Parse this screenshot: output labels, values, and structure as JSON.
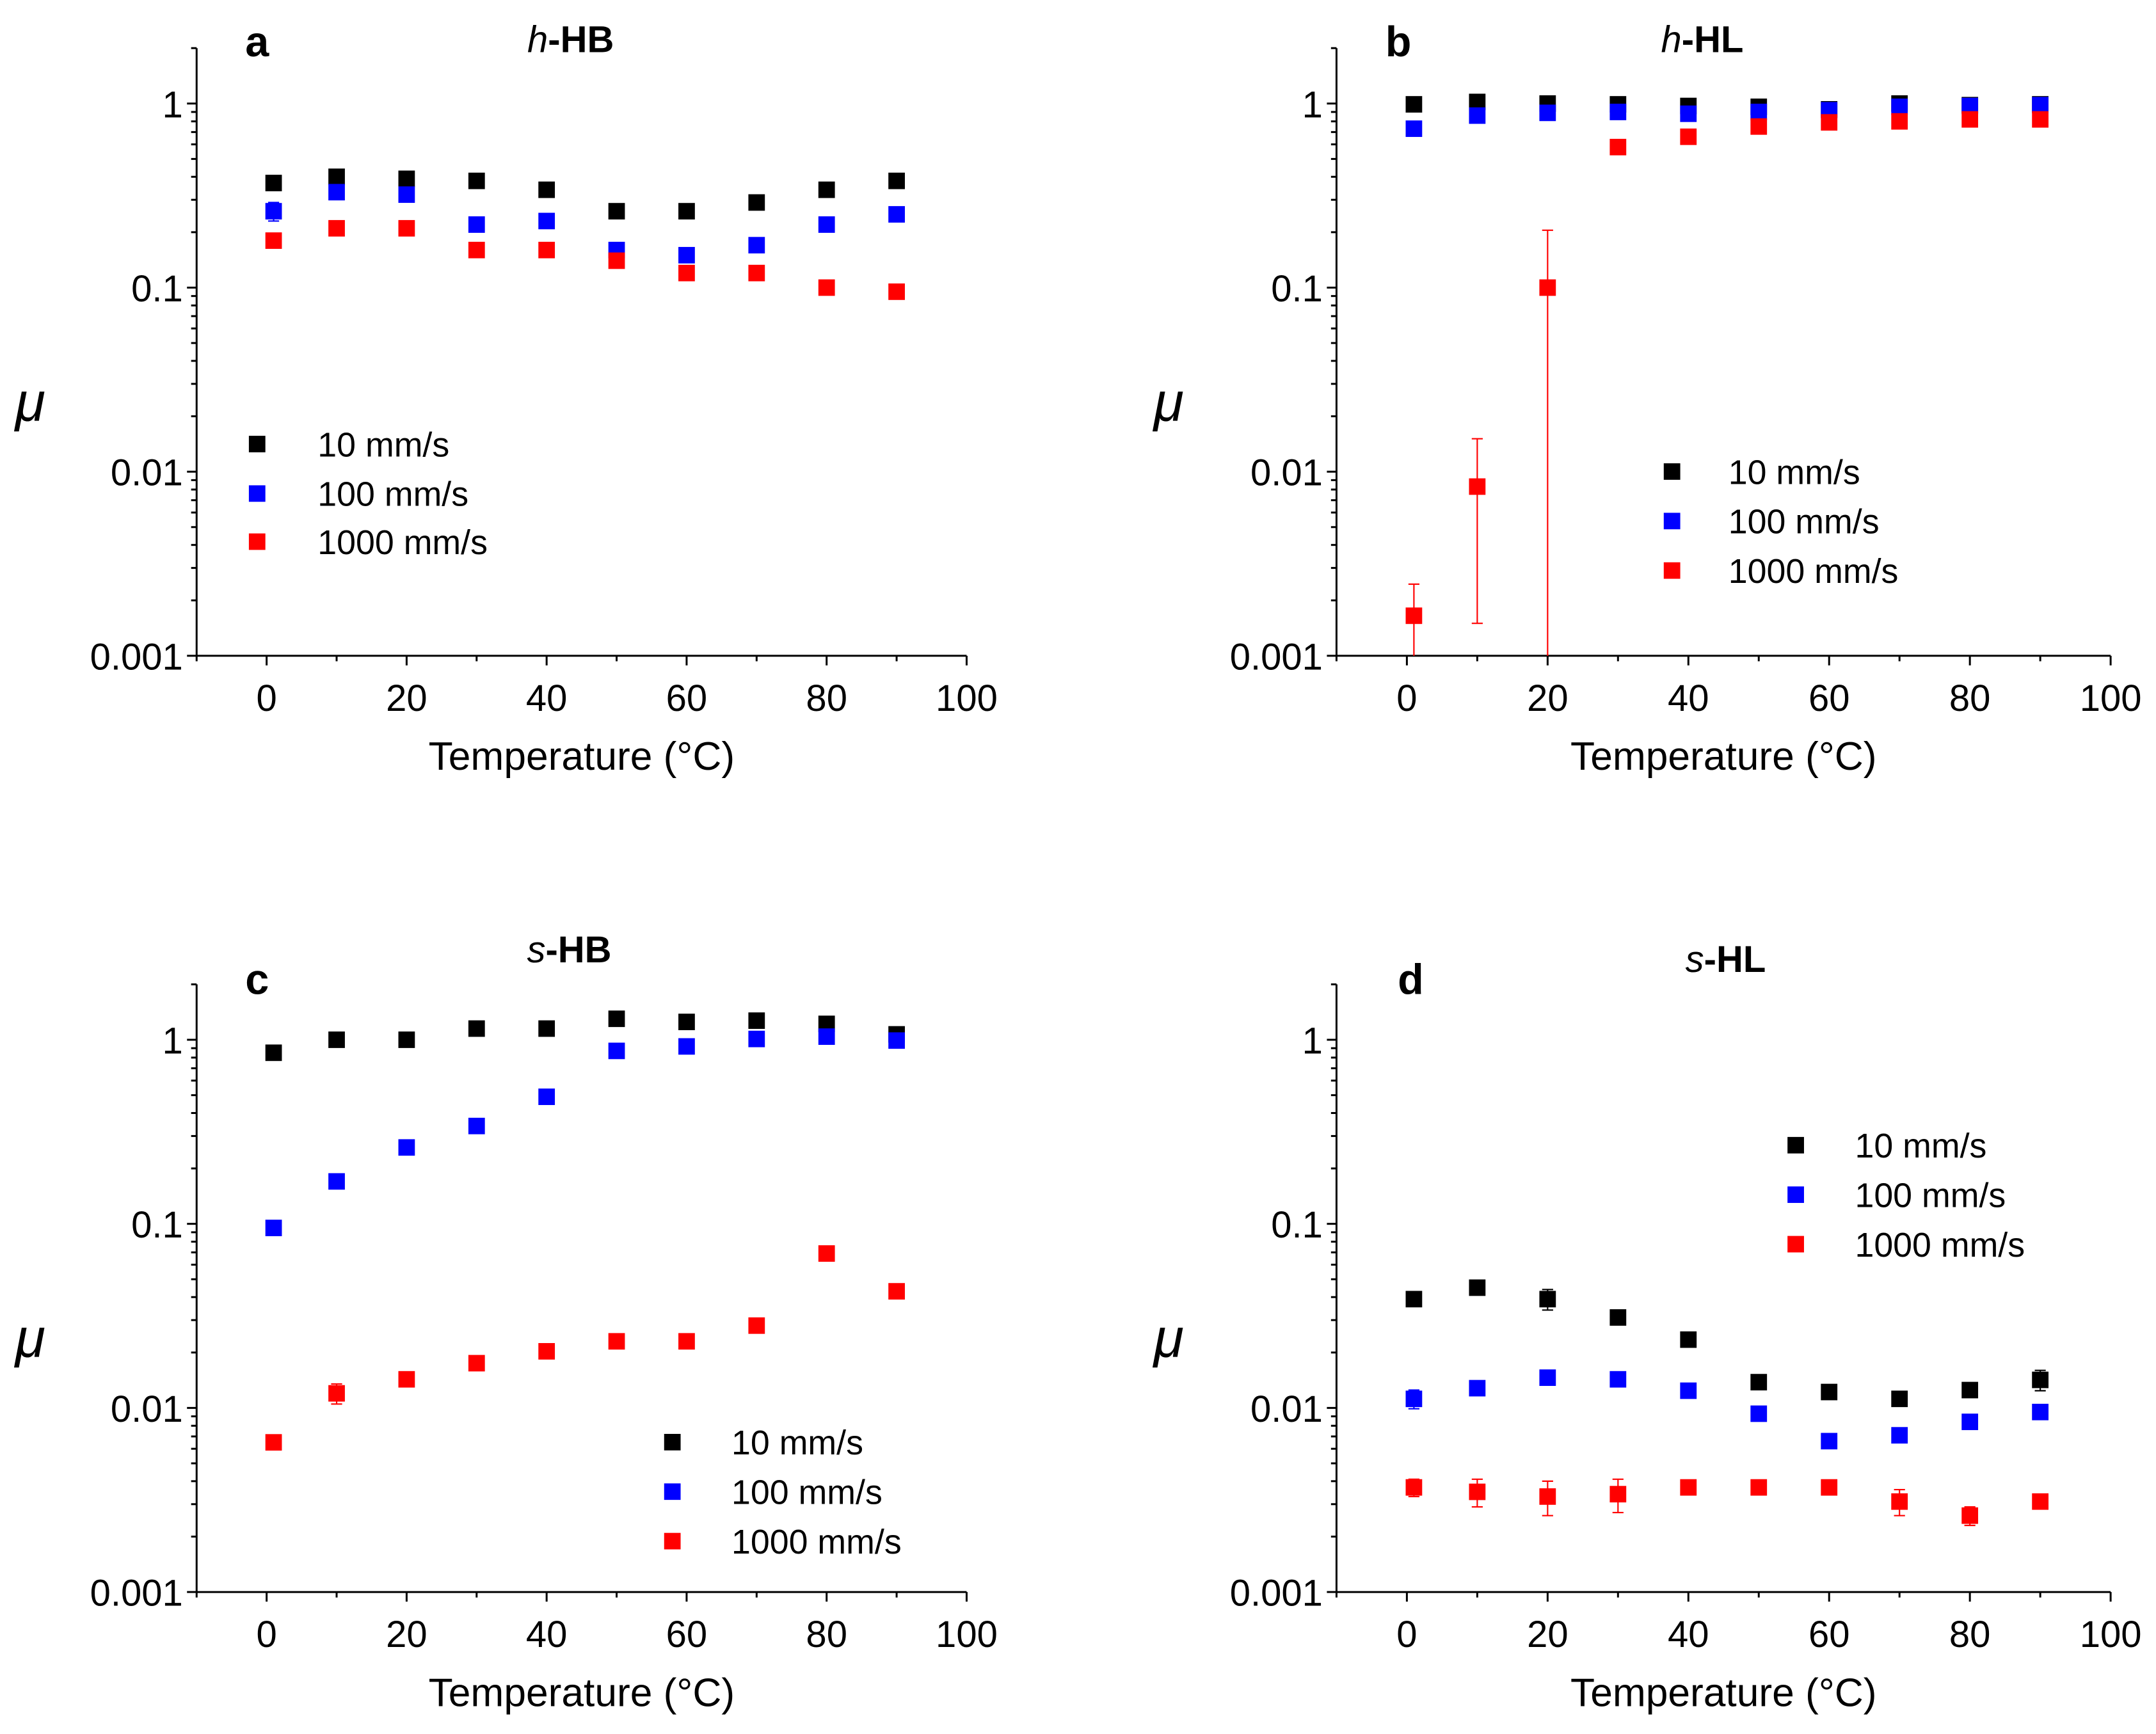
{
  "figure": {
    "panels": [
      "a",
      "b",
      "c",
      "d"
    ]
  },
  "chart_data": [
    {
      "type": "scatter",
      "panel": "a",
      "title_prefix": "h",
      "title_suffix": "-HB",
      "xlabel": "Temperature (°C)",
      "ylabel": "μ",
      "yscale": "log",
      "xlim": [
        -10,
        100
      ],
      "ylim": [
        0.001,
        2
      ],
      "xticks": [
        0,
        20,
        40,
        60,
        80,
        100
      ],
      "yticks": [
        0.001,
        0.01,
        0.1,
        1
      ],
      "ytick_labels": [
        "0.001",
        "0.01",
        "0.1",
        "1"
      ],
      "legend_position": "left-middle",
      "x": [
        1,
        10,
        20,
        30,
        40,
        50,
        60,
        70,
        80,
        90
      ],
      "series": [
        {
          "name": "10 mm/s",
          "color": "#000000",
          "values": [
            0.37,
            0.4,
            0.39,
            0.38,
            0.34,
            0.26,
            0.26,
            0.29,
            0.34,
            0.38
          ],
          "errors": [
            0,
            0,
            0,
            0,
            0,
            0,
            0,
            0,
            0,
            0
          ]
        },
        {
          "name": "100 mm/s",
          "color": "#0000ff",
          "values": [
            0.26,
            0.33,
            0.32,
            0.22,
            0.23,
            0.16,
            0.15,
            0.17,
            0.22,
            0.25
          ],
          "errors": [
            0.03,
            0,
            0,
            0,
            0,
            0,
            0,
            0,
            0,
            0
          ]
        },
        {
          "name": "1000 mm/s",
          "color": "#ff0000",
          "values": [
            0.18,
            0.21,
            0.21,
            0.16,
            0.16,
            0.14,
            0.12,
            0.12,
            0.1,
            0.095
          ],
          "errors": [
            0,
            0,
            0,
            0,
            0,
            0,
            0,
            0,
            0,
            0
          ]
        }
      ]
    },
    {
      "type": "scatter",
      "panel": "b",
      "title_prefix": "h",
      "title_suffix": "-HL",
      "xlabel": "Temperature (°C)",
      "ylabel": "μ",
      "yscale": "log",
      "xlim": [
        -10,
        100
      ],
      "ylim": [
        0.001,
        2
      ],
      "xticks": [
        0,
        20,
        40,
        60,
        80,
        100
      ],
      "yticks": [
        0.001,
        0.01,
        0.1,
        1
      ],
      "ytick_labels": [
        "0.001",
        "0.01",
        "0.1",
        "1"
      ],
      "legend_position": "right-middle",
      "x": [
        1,
        10,
        20,
        30,
        40,
        50,
        60,
        70,
        80,
        90
      ],
      "series": [
        {
          "name": "10 mm/s",
          "color": "#000000",
          "values": [
            0.99,
            1.02,
            1.0,
            0.99,
            0.97,
            0.96,
            0.93,
            1.0,
            0.98,
            0.99
          ],
          "errors": [
            0,
            0,
            0,
            0,
            0,
            0,
            0,
            0,
            0,
            0
          ]
        },
        {
          "name": "100 mm/s",
          "color": "#0000ff",
          "values": [
            0.73,
            0.86,
            0.89,
            0.9,
            0.88,
            0.9,
            0.92,
            0.96,
            0.97,
            0.98
          ],
          "errors": [
            0,
            0,
            0,
            0,
            0,
            0,
            0,
            0,
            0,
            0
          ]
        },
        {
          "name": "1000 mm/s",
          "color": "#ff0000",
          "values": [
            0.00165,
            0.0083,
            0.1,
            0.58,
            0.66,
            0.75,
            0.79,
            0.8,
            0.82,
            0.82
          ],
          "errors": [
            0.0008,
            0.0068,
            0.105,
            0,
            0,
            0,
            0,
            0,
            0,
            0
          ]
        }
      ]
    },
    {
      "type": "scatter",
      "panel": "c",
      "title_prefix": "s",
      "title_suffix": "-HB",
      "xlabel": "Temperature (°C)",
      "ylabel": "μ",
      "yscale": "log",
      "xlim": [
        -10,
        100
      ],
      "ylim": [
        0.001,
        2
      ],
      "xticks": [
        0,
        20,
        40,
        60,
        80,
        100
      ],
      "yticks": [
        0.001,
        0.01,
        0.1,
        1
      ],
      "ytick_labels": [
        "0.001",
        "0.01",
        "0.1",
        "1"
      ],
      "legend_position": "bottom-right",
      "x": [
        1,
        10,
        20,
        30,
        40,
        50,
        60,
        70,
        80,
        90
      ],
      "series": [
        {
          "name": "10 mm/s",
          "color": "#000000",
          "values": [
            0.85,
            1.0,
            1.0,
            1.15,
            1.15,
            1.3,
            1.25,
            1.27,
            1.22,
            1.07
          ],
          "errors": [
            0,
            0,
            0,
            0,
            0,
            0,
            0,
            0,
            0,
            0
          ]
        },
        {
          "name": "100 mm/s",
          "color": "#0000ff",
          "values": [
            0.095,
            0.17,
            0.26,
            0.34,
            0.49,
            0.87,
            0.92,
            1.01,
            1.04,
            0.99
          ],
          "errors": [
            0,
            0,
            0,
            0,
            0,
            0,
            0,
            0,
            0,
            0
          ]
        },
        {
          "name": "1000 mm/s",
          "color": "#ff0000",
          "values": [
            0.0065,
            0.012,
            0.0143,
            0.0175,
            0.0203,
            0.023,
            0.023,
            0.028,
            0.069,
            0.043
          ],
          "errors": [
            0,
            0.0015,
            0,
            0,
            0,
            0,
            0,
            0,
            0,
            0
          ]
        }
      ]
    },
    {
      "type": "scatter",
      "panel": "d",
      "title_prefix": "s",
      "title_suffix": "-HL",
      "xlabel": "Temperature (°C)",
      "ylabel": "μ",
      "yscale": "log",
      "xlim": [
        -10,
        100
      ],
      "ylim": [
        0.001,
        2
      ],
      "xticks": [
        0,
        20,
        40,
        60,
        80,
        100
      ],
      "yticks": [
        0.001,
        0.01,
        0.1,
        1
      ],
      "ytick_labels": [
        "0.001",
        "0.01",
        "0.1",
        "1"
      ],
      "legend_position": "top-right",
      "x": [
        1,
        10,
        20,
        30,
        40,
        50,
        60,
        70,
        80,
        90
      ],
      "series": [
        {
          "name": "10 mm/s",
          "color": "#000000",
          "values": [
            0.039,
            0.045,
            0.039,
            0.031,
            0.0235,
            0.0138,
            0.0122,
            0.0112,
            0.0125,
            0.0142
          ],
          "errors": [
            0,
            0,
            0.005,
            0,
            0.002,
            0,
            0,
            0,
            0,
            0.0018
          ]
        },
        {
          "name": "100 mm/s",
          "color": "#0000ff",
          "values": [
            0.0112,
            0.0128,
            0.0146,
            0.0143,
            0.0124,
            0.0093,
            0.0066,
            0.0071,
            0.0084,
            0.0095
          ],
          "errors": [
            0.0013,
            0,
            0,
            0,
            0,
            0,
            0,
            0,
            0,
            0
          ]
        },
        {
          "name": "1000 mm/s",
          "color": "#ff0000",
          "values": [
            0.0037,
            0.0035,
            0.0033,
            0.0034,
            0.0037,
            0.0037,
            0.0037,
            0.0031,
            0.0026,
            0.0031
          ],
          "errors": [
            0.0004,
            0.0006,
            0.0007,
            0.0007,
            0,
            0,
            0.0003,
            0.0005,
            0.0003,
            0
          ]
        }
      ]
    }
  ]
}
